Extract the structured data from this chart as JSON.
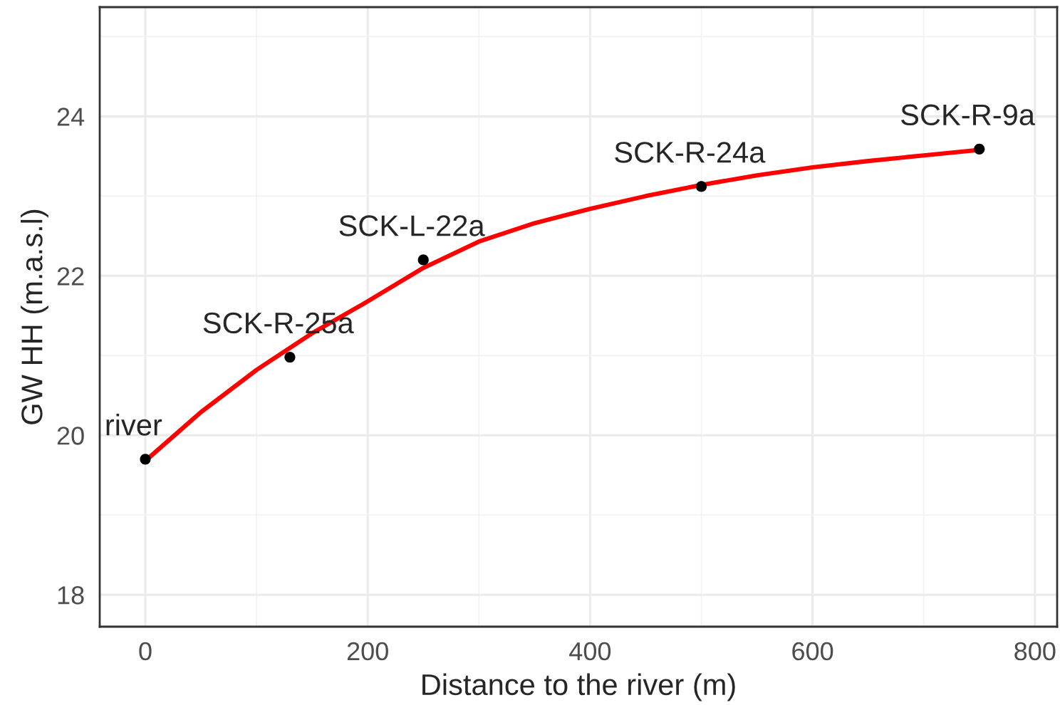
{
  "chart_data": {
    "type": "scatter",
    "xlabel": "Distance to the river (m)",
    "ylabel": "GW HH (m.a.s.l)",
    "series": [
      {
        "color": "#000000",
        "marker": "circle",
        "x": [
          0,
          130,
          250,
          500,
          750
        ],
        "values": [
          19.7,
          20.98,
          22.2,
          23.12,
          23.59
        ]
      },
      {
        "type": "line",
        "color": "#ff0000",
        "x": [
          0,
          50,
          100,
          150,
          200,
          250,
          300,
          350,
          400,
          450,
          500,
          550,
          600,
          650,
          700,
          750
        ],
        "values": [
          19.68,
          20.29,
          20.82,
          21.28,
          21.68,
          22.1,
          22.43,
          22.66,
          22.84,
          23.0,
          23.14,
          23.26,
          23.36,
          23.44,
          23.51,
          23.58
        ]
      }
    ],
    "annotations": [
      {
        "text": "river",
        "x": 0,
        "y": 19.7
      },
      {
        "text": "SCK-R-25a",
        "x": 130,
        "y": 20.98
      },
      {
        "text": "SCK-L-22a",
        "x": 250,
        "y": 22.2
      },
      {
        "text": "SCK-R-24a",
        "x": 500,
        "y": 23.12
      },
      {
        "text": "SCK-R-9a",
        "x": 750,
        "y": 23.59
      }
    ],
    "xlim": [
      -41,
      820
    ],
    "ylim": [
      17.6,
      25.37
    ],
    "xticks": [
      0,
      200,
      400,
      600,
      800
    ],
    "yticks": [
      18,
      20,
      22,
      24
    ],
    "grid": true,
    "legend": false
  }
}
